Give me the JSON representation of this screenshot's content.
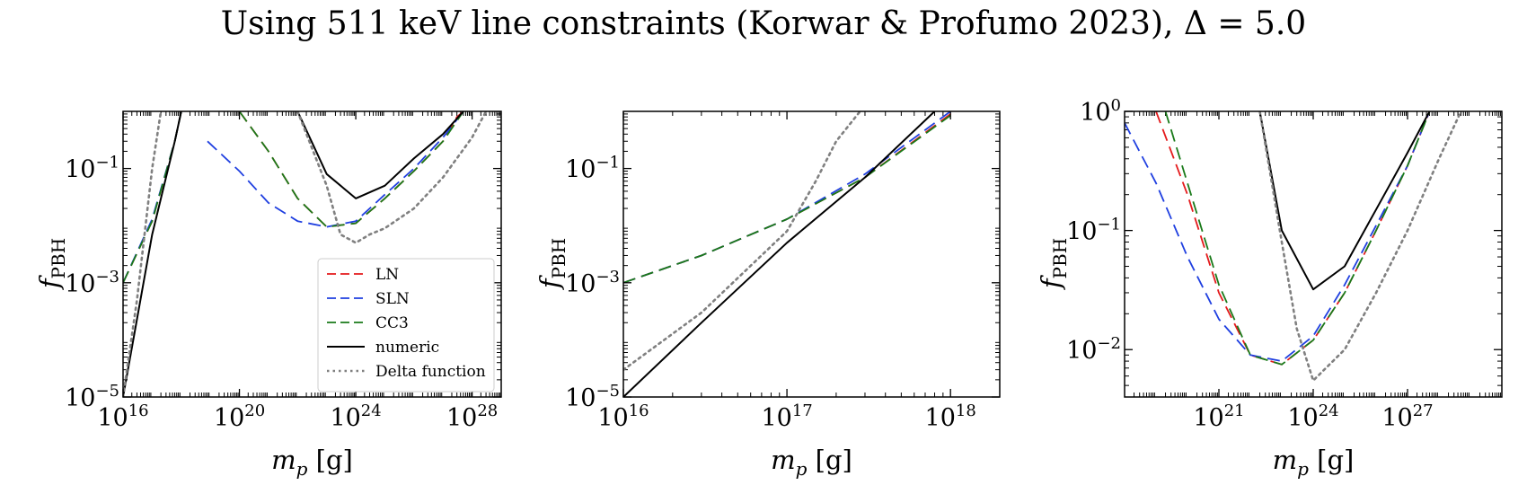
{
  "figure": {
    "title": "Using 511 keV line constraints (Korwar & Profumo 2023), Δ = 5.0"
  },
  "colors": {
    "LN": "#e41a1c",
    "SLN": "#1f3fe0",
    "CC3": "#1a7a1a",
    "numeric": "#000000",
    "Delta function": "#808080"
  },
  "chart_data": [
    {
      "type": "line",
      "panel": "left",
      "xlabel": "m_p [g]",
      "ylabel": "f_PBH",
      "xscale": "log",
      "yscale": "log",
      "xlim": [
        1e+16,
        1e+29
      ],
      "ylim": [
        1e-05,
        1
      ],
      "xticks": [
        1e+16,
        1e+20,
        1e+24,
        1e+28
      ],
      "xtick_labels": [
        "10^16",
        "10^20",
        "10^24",
        "10^28"
      ],
      "yticks": [
        1e-05,
        0.001,
        0.1
      ],
      "ytick_labels": [
        "10^-5",
        "10^-3",
        "10^-1"
      ],
      "legend": {
        "placement": "lower-right",
        "entries": [
          "LN",
          "SLN",
          "CC3",
          "numeric",
          "Delta function"
        ]
      },
      "series": [
        {
          "name": "LN",
          "style": "dashed",
          "segments": [
            [
              [
                1e+16,
                0.001
              ],
              [
                1e+16,
                0.001
              ],
              [
                1e+17,
                0.012
              ],
              [
                6e+17,
                0.3
              ],
              [
                1e+18,
                1
              ]
            ],
            [
              [
                1e+20,
                1
              ],
              [
                1e+21,
                0.2
              ],
              [
                1e+22,
                0.03
              ],
              [
                1e+23,
                0.0095
              ],
              [
                1e+24,
                0.011
              ],
              [
                1e+25,
                0.03
              ],
              [
                1e+26,
                0.09
              ],
              [
                1e+27,
                0.3
              ],
              [
                3e+27,
                0.8
              ],
              [
                5e+27,
                1
              ]
            ]
          ]
        },
        {
          "name": "SLN",
          "style": "dashed",
          "segments": [
            [
              [
                1e+16,
                0.001
              ],
              [
                1e+17,
                0.013
              ],
              [
                6e+17,
                0.3
              ],
              [
                1e+18,
                1
              ]
            ],
            [
              [
                8e+18,
                0.3
              ],
              [
                1e+20,
                0.09
              ],
              [
                1e+21,
                0.025
              ],
              [
                1e+22,
                0.012
              ],
              [
                1e+23,
                0.0095
              ],
              [
                1e+24,
                0.012
              ],
              [
                1e+25,
                0.035
              ],
              [
                1e+26,
                0.1
              ],
              [
                1e+27,
                0.35
              ],
              [
                5e+27,
                1
              ]
            ]
          ]
        },
        {
          "name": "CC3",
          "style": "dashed",
          "segments": [
            [
              [
                1e+16,
                0.001
              ],
              [
                1e+17,
                0.012
              ],
              [
                6e+17,
                0.3
              ],
              [
                1e+18,
                1
              ]
            ],
            [
              [
                1e+20,
                1
              ],
              [
                1e+21,
                0.2
              ],
              [
                1e+22,
                0.03
              ],
              [
                1e+23,
                0.0095
              ],
              [
                1e+24,
                0.011
              ],
              [
                1e+25,
                0.03
              ],
              [
                1e+26,
                0.09
              ],
              [
                1e+27,
                0.3
              ],
              [
                5e+27,
                1
              ]
            ]
          ]
        },
        {
          "name": "numeric",
          "style": "solid",
          "segments": [
            [
              [
                1e+16,
                1e-05
              ],
              [
                1e+17,
                0.007
              ],
              [
                6e+17,
                0.3
              ],
              [
                1e+18,
                1
              ]
            ],
            [
              [
                1e+22,
                1
              ],
              [
                1e+23,
                0.08
              ],
              [
                1e+24,
                0.03
              ],
              [
                1e+25,
                0.05
              ],
              [
                1e+26,
                0.15
              ],
              [
                1e+27,
                0.4
              ],
              [
                5e+27,
                1
              ]
            ]
          ]
        },
        {
          "name": "Delta function",
          "style": "dotted",
          "segments": [
            [
              [
                1e+16,
                1e-05
              ],
              [
                3e+16,
                0.0005
              ],
              [
                1e+17,
                0.1
              ],
              [
                2e+17,
                1
              ]
            ],
            [
              [
                1e+22,
                1
              ],
              [
                1e+23,
                0.05
              ],
              [
                3e+23,
                0.007
              ],
              [
                1e+24,
                0.005
              ],
              [
                3e+24,
                0.007
              ],
              [
                1e+25,
                0.009
              ],
              [
                1e+26,
                0.02
              ],
              [
                1e+27,
                0.07
              ],
              [
                1e+28,
                0.35
              ],
              [
                3e+28,
                1
              ]
            ]
          ]
        }
      ]
    },
    {
      "type": "line",
      "panel": "middle",
      "xlabel": "m_p [g]",
      "ylabel": "f_PBH",
      "xscale": "log",
      "yscale": "log",
      "xlim": [
        1e+16,
        2e+18
      ],
      "ylim": [
        1e-05,
        1
      ],
      "xticks": [
        1e+16,
        1e+17,
        1e+18
      ],
      "xtick_labels": [
        "10^16",
        "10^17",
        "10^18"
      ],
      "yticks": [
        1e-05,
        0.001,
        0.1
      ],
      "ytick_labels": [
        "10^-5",
        "10^-3",
        "10^-1"
      ],
      "series": [
        {
          "name": "LN",
          "style": "dashed",
          "segments": [
            [
              [
                1e+16,
                0.001
              ],
              [
                3e+16,
                0.003
              ],
              [
                1e+17,
                0.013
              ],
              [
                3e+17,
                0.07
              ],
              [
                1e+18,
                0.9
              ]
            ]
          ]
        },
        {
          "name": "SLN",
          "style": "dashed",
          "segments": [
            [
              [
                1e+16,
                0.001
              ],
              [
                3e+16,
                0.003
              ],
              [
                1e+17,
                0.013
              ],
              [
                3e+17,
                0.08
              ],
              [
                1e+18,
                1
              ]
            ]
          ]
        },
        {
          "name": "CC3",
          "style": "dashed",
          "segments": [
            [
              [
                1e+16,
                0.001
              ],
              [
                3e+16,
                0.003
              ],
              [
                1e+17,
                0.013
              ],
              [
                3e+17,
                0.07
              ],
              [
                1e+18,
                0.85
              ]
            ]
          ]
        },
        {
          "name": "numeric",
          "style": "solid",
          "segments": [
            [
              [
                1e+16,
                1e-05
              ],
              [
                3e+16,
                0.0002
              ],
              [
                1e+17,
                0.005
              ],
              [
                3e+17,
                0.07
              ],
              [
                8e+17,
                1
              ]
            ]
          ]
        },
        {
          "name": "Delta function",
          "style": "dotted",
          "segments": [
            [
              [
                1e+16,
                3e-05
              ],
              [
                3e+16,
                0.0003
              ],
              [
                1e+17,
                0.008
              ],
              [
                1.5e+17,
                0.06
              ],
              [
                2e+17,
                0.3
              ],
              [
                2.8e+17,
                1
              ]
            ]
          ]
        }
      ]
    },
    {
      "type": "line",
      "panel": "right",
      "xlabel": "m_p [g]",
      "ylabel": "f_PBH",
      "xscale": "log",
      "yscale": "log",
      "xlim": [
        1e+18,
        1e+30
      ],
      "ylim": [
        0.004,
        1
      ],
      "xticks": [
        1e+21,
        1e+24,
        1e+27
      ],
      "xtick_labels": [
        "10^21",
        "10^24",
        "10^27"
      ],
      "yticks": [
        0.01,
        0.1,
        1
      ],
      "ytick_labels": [
        "10^-2",
        "10^-1",
        "10^0"
      ],
      "series": [
        {
          "name": "LN",
          "style": "dashed",
          "segments": [
            [
              [
                1e+19,
                1
              ],
              [
                1e+20,
                0.2
              ],
              [
                1e+21,
                0.03
              ],
              [
                1e+22,
                0.009
              ],
              [
                1e+23,
                0.0075
              ],
              [
                1e+24,
                0.012
              ],
              [
                1e+25,
                0.03
              ],
              [
                1e+26,
                0.1
              ],
              [
                1e+27,
                0.35
              ],
              [
                5e+27,
                1
              ]
            ]
          ]
        },
        {
          "name": "SLN",
          "style": "dashed",
          "segments": [
            [
              [
                1e+18,
                0.8
              ],
              [
                1e+19,
                0.25
              ],
              [
                1e+20,
                0.06
              ],
              [
                1e+21,
                0.018
              ],
              [
                1e+22,
                0.009
              ],
              [
                1e+23,
                0.008
              ],
              [
                1e+24,
                0.013
              ],
              [
                1e+25,
                0.035
              ],
              [
                1e+26,
                0.11
              ],
              [
                1e+27,
                0.35
              ],
              [
                5e+27,
                1
              ]
            ]
          ]
        },
        {
          "name": "CC3",
          "style": "dashed",
          "segments": [
            [
              [
                2e+19,
                1
              ],
              [
                1e+20,
                0.25
              ],
              [
                1e+21,
                0.035
              ],
              [
                1e+22,
                0.009
              ],
              [
                1e+23,
                0.0075
              ],
              [
                1e+24,
                0.012
              ],
              [
                1e+25,
                0.03
              ],
              [
                1e+26,
                0.1
              ],
              [
                1e+27,
                0.35
              ],
              [
                5e+27,
                1
              ]
            ]
          ]
        },
        {
          "name": "numeric",
          "style": "solid",
          "segments": [
            [
              [
                2e+22,
                1
              ],
              [
                1e+23,
                0.1
              ],
              [
                1e+24,
                0.032
              ],
              [
                1e+25,
                0.05
              ],
              [
                1e+26,
                0.15
              ],
              [
                1e+27,
                0.45
              ],
              [
                5e+27,
                1
              ]
            ]
          ]
        },
        {
          "name": "Delta function",
          "style": "dotted",
          "segments": [
            [
              [
                2e+22,
                1
              ],
              [
                1e+23,
                0.08
              ],
              [
                3e+23,
                0.015
              ],
              [
                1e+24,
                0.0055
              ],
              [
                1e+25,
                0.01
              ],
              [
                1e+26,
                0.03
              ],
              [
                1e+27,
                0.1
              ],
              [
                1e+28,
                0.4
              ],
              [
                5e+28,
                1
              ]
            ]
          ]
        }
      ]
    }
  ]
}
